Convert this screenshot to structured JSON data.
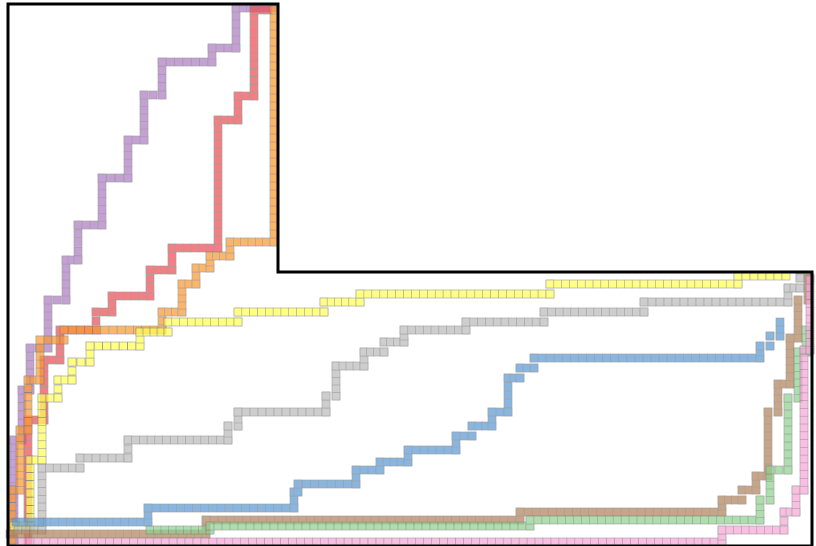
{
  "diagram": {
    "background": "#ffffff",
    "outline_color": "#000000",
    "cell_edge_color": "#7a7a7a",
    "paths": [
      {
        "id": "purple",
        "color": "#b07cc6"
      },
      {
        "id": "red",
        "color": "#ee4f54"
      },
      {
        "id": "orange",
        "color": "#fb9a33"
      },
      {
        "id": "yellow",
        "color": "#ffff55"
      },
      {
        "id": "gray",
        "color": "#bcbcbc"
      },
      {
        "id": "blue",
        "color": "#5b9bd5"
      },
      {
        "id": "brown",
        "color": "#b5835a"
      },
      {
        "id": "green",
        "color": "#8fd08f"
      },
      {
        "id": "pink",
        "color": "#f9a6d9"
      }
    ]
  }
}
